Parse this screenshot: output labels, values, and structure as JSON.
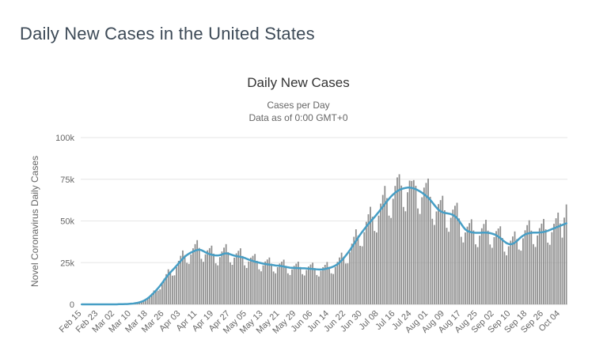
{
  "page": {
    "title": "Daily New Cases in the United States"
  },
  "chart": {
    "title": "Daily New Cases",
    "subtitle_line1": "Cases per Day",
    "subtitle_line2": "Data as of 0:00 GMT+0",
    "colors": {
      "bar": "#8f8f8f",
      "line": "#469ec5",
      "grid": "#e6e6e6",
      "axis_line": "#d4d4d4",
      "tick_text": "#666666",
      "title_text": "#333333",
      "page_title_text": "#3d4a57"
    }
  },
  "chart_data": {
    "type": "bar",
    "title": "Daily New Cases",
    "subtitle_lines": [
      "Cases per Day",
      "Data as of 0:00 GMT+0"
    ],
    "ylabel": "Novel Coronavirus Daily Cases",
    "xlabel": "",
    "ylim_cases": [
      0,
      100000
    ],
    "y_tick_labels": [
      "0",
      "25k",
      "50k",
      "75k",
      "100k"
    ],
    "y_tick_values_k": [
      0,
      25,
      50,
      75,
      100
    ],
    "x_tick_labels": [
      "Feb 15",
      "Feb 23",
      "Mar 02",
      "Mar 10",
      "Mar 18",
      "Mar 26",
      "Apr 03",
      "Apr 11",
      "Apr 19",
      "Apr 27",
      "May 05",
      "May 13",
      "May 21",
      "May 29",
      "Jun 06",
      "Jun 14",
      "Jun 22",
      "Jun 30",
      "Jul 08",
      "Jul 16",
      "Jul 24",
      "Aug 01",
      "Aug 09",
      "Aug 17",
      "Aug 25",
      "Sep 02",
      "Sep 10",
      "Sep 18",
      "Sep 26",
      "Oct 04"
    ],
    "x_tick_every_n_days": 8,
    "grid": "horizontal",
    "legend_position": "none",
    "values_unit": "thousands of cases per day",
    "series": [
      {
        "name": "daily_new_cases_bars",
        "type": "bar",
        "values_k": [
          0,
          0,
          0,
          0,
          0,
          0,
          0,
          0,
          0,
          0,
          0,
          0,
          0,
          0,
          0,
          0,
          0,
          0,
          0.1,
          0.1,
          0.1,
          0.2,
          0.2,
          0.2,
          0.3,
          0.5,
          0.8,
          1.0,
          1.4,
          1.7,
          1.8,
          2.3,
          3.5,
          4.9,
          6.5,
          8.3,
          8.6,
          8.2,
          9.0,
          12.3,
          15.4,
          18.1,
          21.0,
          19.8,
          17.2,
          17.4,
          22.3,
          26.1,
          29.1,
          32.3,
          29.5,
          24.9,
          24.3,
          29.9,
          33.6,
          36.1,
          38.5,
          33.8,
          27.3,
          25.5,
          30.0,
          32.4,
          33.7,
          35.2,
          30.4,
          24.6,
          23.4,
          28.3,
          31.7,
          34.0,
          36.1,
          31.3,
          25.2,
          23.7,
          28.0,
          30.6,
          32.1,
          33.6,
          29.0,
          23.4,
          21.8,
          25.7,
          28.0,
          29.1,
          30.2,
          26.1,
          21.0,
          19.8,
          23.4,
          25.7,
          26.9,
          28.1,
          24.4,
          19.7,
          18.6,
          22.3,
          24.5,
          25.6,
          26.8,
          23.1,
          18.6,
          17.6,
          21.0,
          23.1,
          24.4,
          25.6,
          22.4,
          18.1,
          17.3,
          20.6,
          22.7,
          23.9,
          25.0,
          21.7,
          17.6,
          16.7,
          20.1,
          22.3,
          23.7,
          25.4,
          22.5,
          18.6,
          18.2,
          22.4,
          25.5,
          28.1,
          31.0,
          28.5,
          24.5,
          24.6,
          31.2,
          36.4,
          40.5,
          45.0,
          41.2,
          35.1,
          34.8,
          43.3,
          49.5,
          54.0,
          58.5,
          52.5,
          44.0,
          43.1,
          53.2,
          60.4,
          65.6,
          71.0,
          63.7,
          53.2,
          51.8,
          63.3,
          71.0,
          76.1,
          78.0,
          71.2,
          58.4,
          55.8,
          67.2,
          74.2,
          74.0,
          74.5,
          71.1,
          57.5,
          54.2,
          64.2,
          70.0,
          72.8,
          75.4,
          64.5,
          51.3,
          47.6,
          55.7,
          60.1,
          62.5,
          65.1,
          56.4,
          45.9,
          43.5,
          51.9,
          56.8,
          59.1,
          60.9,
          51.5,
          40.5,
          37.1,
          43.1,
          46.6,
          48.7,
          51.0,
          44.3,
          36.0,
          34.3,
          41.2,
          45.6,
          48.2,
          50.7,
          44.2,
          35.9,
          33.9,
          40.3,
          43.9,
          45.5,
          46.8,
          39.8,
          31.6,
          29.4,
          34.8,
          38.2,
          40.7,
          43.7,
          39.1,
          32.9,
          32.2,
          39.6,
          44.4,
          47.5,
          50.4,
          44.2,
          36.1,
          34.4,
          41.3,
          45.7,
          48.4,
          51.2,
          45.0,
          37.0,
          35.7,
          43.3,
          48.3,
          51.6,
          55.0,
          48.5,
          40.0,
          52.0,
          59.9
        ]
      },
      {
        "name": "seven_day_moving_average_line",
        "type": "line",
        "values_k": [
          0,
          0,
          0,
          0,
          0,
          0,
          0,
          0,
          0,
          0,
          0,
          0,
          0,
          0,
          0,
          0,
          0,
          0,
          0.1,
          0.1,
          0.1,
          0.2,
          0.2,
          0.3,
          0.4,
          0.5,
          0.7,
          0.9,
          1.2,
          1.6,
          2.1,
          2.8,
          3.6,
          4.6,
          5.8,
          7.0,
          8.3,
          9.7,
          11.2,
          12.8,
          14.5,
          16.2,
          17.8,
          19.2,
          20.5,
          21.8,
          23.2,
          24.6,
          26.0,
          27.4,
          28.6,
          29.6,
          30.4,
          31.1,
          31.7,
          32.2,
          32.6,
          32.8,
          32.5,
          31.9,
          31.2,
          30.6,
          30.1,
          29.8,
          29.5,
          29.3,
          29.3,
          29.5,
          29.9,
          30.4,
          30.6,
          30.4,
          30.0,
          29.6,
          29.2,
          28.9,
          28.7,
          28.5,
          28.2,
          27.8,
          27.3,
          26.8,
          26.4,
          26.0,
          25.6,
          25.3,
          25.0,
          24.7,
          24.4,
          24.2,
          24.0,
          23.8,
          23.7,
          23.5,
          23.3,
          23.2,
          23.1,
          22.9,
          22.7,
          22.4,
          22.2,
          22.0,
          21.9,
          21.8,
          21.8,
          21.7,
          21.7,
          21.6,
          21.6,
          21.5,
          21.4,
          21.3,
          21.2,
          21.1,
          21.0,
          20.9,
          20.9,
          21.0,
          21.2,
          21.5,
          21.8,
          22.2,
          22.7,
          23.3,
          24.1,
          25.1,
          26.3,
          27.7,
          29.2,
          30.8,
          32.5,
          34.3,
          36.2,
          38.1,
          40.0,
          41.8,
          43.5,
          45.1,
          46.7,
          48.2,
          49.6,
          51.0,
          52.4,
          53.9,
          55.4,
          57.0,
          58.6,
          60.2,
          61.8,
          63.3,
          64.7,
          65.9,
          67.0,
          67.9,
          68.6,
          69.1,
          69.5,
          69.8,
          70.0,
          70.0,
          69.8,
          69.5,
          69.0,
          68.4,
          67.7,
          66.9,
          66.0,
          65.0,
          63.9,
          62.6,
          61.1,
          59.5,
          58.0,
          56.7,
          55.8,
          55.2,
          54.8,
          54.6,
          54.4,
          54.1,
          53.6,
          52.8,
          51.6,
          50.0,
          48.2,
          46.4,
          44.9,
          44.0,
          43.5,
          43.2,
          43.0,
          42.9,
          42.9,
          42.9,
          43.0,
          43.0,
          43.0,
          42.9,
          42.7,
          42.4,
          42.0,
          41.4,
          40.6,
          39.7,
          38.6,
          37.6,
          36.7,
          36.2,
          36.0,
          36.3,
          37.0,
          38.0,
          39.2,
          40.3,
          41.2,
          41.9,
          42.4,
          42.7,
          42.9,
          43.0,
          43.0,
          43.0,
          43.1,
          43.2,
          43.4,
          43.7,
          44.1,
          44.6,
          45.1,
          45.6,
          46.1,
          46.6,
          47.1,
          47.6,
          48.1,
          48.6
        ]
      }
    ]
  }
}
